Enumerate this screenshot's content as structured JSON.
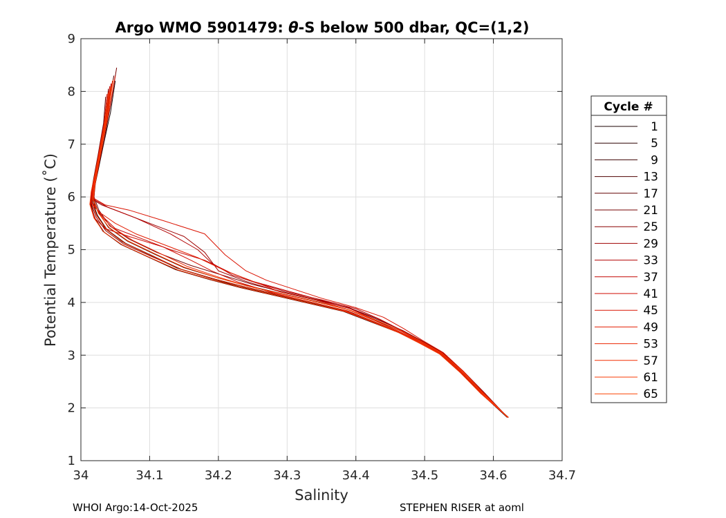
{
  "chart_data": {
    "type": "line",
    "title_prefix": "Argo WMO 5901479: ",
    "title_theta": "θ",
    "title_suffix": "-S below 500 dbar,  QC=(1,2)",
    "xlabel": "Salinity",
    "ylabel": "Potential Temperature (˚C)",
    "xlim": [
      34.0,
      34.7
    ],
    "ylim": [
      1,
      9
    ],
    "xticks": [
      "34",
      "34.1",
      "34.2",
      "34.3",
      "34.4",
      "34.5",
      "34.6",
      "34.7"
    ],
    "yticks": [
      "1",
      "2",
      "3",
      "4",
      "5",
      "6",
      "7",
      "8",
      "9"
    ],
    "grid": true,
    "legend": {
      "title": "Cycle #",
      "placement": "outside-right",
      "entries": [
        "1",
        "5",
        "9",
        "13",
        "17",
        "21",
        "25",
        "29",
        "33",
        "37",
        "41",
        "45",
        "49",
        "53",
        "57",
        "61",
        "65"
      ],
      "colors": [
        "#1a0000",
        "#2a0000",
        "#3c0000",
        "#4f0000",
        "#620000",
        "#760000",
        "#8a0000",
        "#9e0000",
        "#b20000",
        "#c20300",
        "#cf0a00",
        "#da1200",
        "#e31b00",
        "#ec2400",
        "#f22e00",
        "#f73800",
        "#fb4200"
      ]
    },
    "series": [
      {
        "x": [
          34.05,
          34.043,
          34.033,
          34.025,
          34.02,
          34.018,
          34.022,
          34.035,
          34.06,
          34.1,
          34.14,
          34.19,
          34.23,
          34.28,
          34.33,
          34.38,
          34.42,
          34.46,
          34.49,
          34.52,
          34.55,
          34.58,
          34.62
        ],
        "y": [
          8.2,
          7.6,
          7.0,
          6.5,
          6.2,
          5.95,
          5.7,
          5.4,
          5.15,
          4.9,
          4.65,
          4.45,
          4.3,
          4.15,
          4.0,
          3.85,
          3.65,
          3.45,
          3.25,
          3.05,
          2.7,
          2.3,
          1.82
        ]
      },
      {
        "x": [
          34.045,
          34.038,
          34.028,
          34.022,
          34.019,
          34.017,
          34.024,
          34.038,
          34.065,
          34.105,
          34.145,
          34.195,
          34.24,
          34.29,
          34.34,
          34.385,
          34.425,
          34.462,
          34.492,
          34.522,
          34.552,
          34.582,
          34.621
        ],
        "y": [
          8.1,
          7.5,
          6.9,
          6.45,
          6.15,
          5.9,
          5.65,
          5.38,
          5.12,
          4.88,
          4.63,
          4.44,
          4.29,
          4.14,
          3.99,
          3.84,
          3.64,
          3.44,
          3.24,
          3.03,
          2.68,
          2.28,
          1.82
        ]
      },
      {
        "x": [
          34.04,
          34.035,
          34.027,
          34.02,
          34.016,
          34.015,
          34.02,
          34.032,
          34.058,
          34.098,
          34.138,
          34.188,
          34.232,
          34.282,
          34.332,
          34.382,
          34.422,
          34.462,
          34.493,
          34.523,
          34.553,
          34.583,
          34.622
        ],
        "y": [
          8.0,
          7.45,
          6.85,
          6.4,
          6.1,
          5.85,
          5.6,
          5.35,
          5.1,
          4.86,
          4.62,
          4.43,
          4.28,
          4.13,
          3.98,
          3.83,
          3.63,
          3.43,
          3.23,
          3.02,
          2.67,
          2.27,
          1.82
        ]
      },
      {
        "x": [
          34.048,
          34.04,
          34.03,
          34.023,
          34.019,
          34.018,
          34.025,
          34.04,
          34.068,
          34.108,
          34.15,
          34.2,
          34.245,
          34.295,
          34.345,
          34.39,
          34.428,
          34.465,
          34.494,
          34.524,
          34.553,
          34.583,
          34.621
        ],
        "y": [
          8.3,
          7.7,
          7.05,
          6.55,
          6.22,
          5.98,
          5.72,
          5.42,
          5.16,
          4.91,
          4.66,
          4.46,
          4.31,
          4.16,
          4.01,
          3.86,
          3.66,
          3.46,
          3.26,
          3.04,
          2.69,
          2.29,
          1.82
        ]
      },
      {
        "x": [
          34.036,
          34.033,
          34.025,
          34.019,
          34.015,
          34.014,
          34.021,
          34.034,
          34.06,
          34.1,
          34.142,
          34.192,
          34.236,
          34.286,
          34.336,
          34.386,
          34.426,
          34.464,
          34.494,
          34.524,
          34.554,
          34.584,
          34.622
        ],
        "y": [
          7.9,
          7.4,
          6.8,
          6.38,
          6.08,
          5.84,
          5.58,
          5.33,
          5.09,
          4.85,
          4.61,
          4.42,
          4.27,
          4.12,
          3.97,
          3.82,
          3.62,
          3.42,
          3.22,
          3.01,
          2.66,
          2.26,
          1.82
        ]
      },
      {
        "x": [
          34.052,
          34.044,
          34.034,
          34.026,
          34.021,
          34.019,
          34.026,
          34.042,
          34.07,
          34.11,
          34.16,
          34.21,
          34.25,
          34.3,
          34.35,
          34.395,
          34.432,
          34.468,
          34.496,
          34.526,
          34.556,
          34.586,
          34.62
        ],
        "y": [
          8.45,
          7.8,
          7.1,
          6.6,
          6.25,
          6.0,
          5.75,
          5.45,
          5.2,
          4.95,
          4.7,
          4.5,
          4.34,
          4.18,
          4.03,
          3.87,
          3.67,
          3.47,
          3.27,
          3.05,
          2.7,
          2.3,
          1.83
        ]
      },
      {
        "x": [
          34.04,
          34.036,
          34.027,
          34.02,
          34.016,
          34.015,
          34.022,
          34.036,
          34.062,
          34.103,
          34.146,
          34.196,
          34.24,
          34.29,
          34.34,
          34.388,
          34.426,
          34.463,
          34.493,
          34.523,
          34.553,
          34.583,
          34.621
        ],
        "y": [
          8.05,
          7.5,
          6.88,
          6.42,
          6.12,
          5.88,
          5.62,
          5.36,
          5.11,
          4.87,
          4.63,
          4.44,
          4.29,
          4.14,
          3.99,
          3.84,
          3.64,
          3.44,
          3.24,
          3.03,
          2.68,
          2.28,
          1.82
        ]
      },
      {
        "x": [
          34.044,
          34.038,
          34.03,
          34.022,
          34.018,
          34.017,
          34.03,
          34.06,
          34.1,
          34.15,
          34.18,
          34.2,
          34.24,
          34.29,
          34.34,
          34.39,
          34.43,
          34.465,
          34.495,
          34.525,
          34.555,
          34.585,
          34.621
        ],
        "y": [
          8.15,
          7.55,
          6.95,
          6.5,
          6.2,
          5.95,
          5.85,
          5.7,
          5.5,
          5.25,
          4.95,
          4.6,
          4.4,
          4.2,
          4.05,
          3.9,
          3.7,
          3.48,
          3.27,
          3.04,
          2.69,
          2.29,
          1.82
        ]
      },
      {
        "x": [
          34.046,
          34.04,
          34.031,
          34.024,
          34.02,
          34.019,
          34.04,
          34.08,
          34.13,
          34.17,
          34.19,
          34.22,
          34.26,
          34.3,
          34.35,
          34.4,
          34.435,
          34.467,
          34.496,
          34.526,
          34.555,
          34.584,
          34.62
        ],
        "y": [
          8.2,
          7.62,
          7.0,
          6.5,
          6.18,
          5.95,
          5.8,
          5.6,
          5.3,
          5.0,
          4.75,
          4.52,
          4.35,
          4.2,
          4.05,
          3.88,
          3.68,
          3.47,
          3.26,
          3.04,
          2.69,
          2.29,
          1.83
        ]
      },
      {
        "x": [
          34.042,
          34.036,
          34.028,
          34.021,
          34.017,
          34.016,
          34.03,
          34.05,
          34.09,
          34.13,
          34.18,
          34.22,
          34.25,
          34.3,
          34.345,
          34.39,
          34.428,
          34.465,
          34.495,
          34.525,
          34.554,
          34.583,
          34.62
        ],
        "y": [
          8.1,
          7.5,
          6.9,
          6.45,
          6.15,
          5.9,
          5.65,
          5.4,
          5.2,
          5.0,
          4.8,
          4.55,
          4.4,
          4.22,
          4.06,
          3.89,
          3.67,
          3.46,
          3.25,
          3.03,
          2.68,
          2.28,
          1.83
        ]
      },
      {
        "x": [
          34.038,
          34.034,
          34.026,
          34.02,
          34.016,
          34.014,
          34.02,
          34.035,
          34.07,
          34.12,
          34.16,
          34.19,
          34.23,
          34.28,
          34.33,
          34.38,
          34.42,
          34.46,
          34.492,
          34.522,
          34.552,
          34.582,
          34.621
        ],
        "y": [
          7.95,
          7.42,
          6.84,
          6.39,
          6.09,
          5.85,
          5.6,
          5.4,
          5.25,
          5.05,
          4.8,
          4.6,
          4.38,
          4.18,
          4.02,
          3.86,
          3.65,
          3.44,
          3.24,
          3.02,
          2.67,
          2.27,
          1.82
        ]
      },
      {
        "x": [
          34.05,
          34.042,
          34.032,
          34.025,
          34.02,
          34.018,
          34.035,
          34.07,
          34.12,
          34.18,
          34.21,
          34.24,
          34.27,
          34.31,
          34.35,
          34.4,
          34.44,
          34.47,
          34.497,
          34.527,
          34.556,
          34.585,
          34.62
        ],
        "y": [
          8.3,
          7.7,
          7.05,
          6.55,
          6.22,
          5.98,
          5.85,
          5.75,
          5.55,
          5.3,
          4.9,
          4.6,
          4.42,
          4.25,
          4.08,
          3.9,
          3.72,
          3.5,
          3.28,
          3.05,
          2.7,
          2.3,
          1.83
        ]
      },
      {
        "x": [
          34.041,
          34.037,
          34.028,
          34.021,
          34.017,
          34.016,
          34.028,
          34.05,
          34.08,
          34.12,
          34.17,
          34.21,
          34.25,
          34.29,
          34.34,
          34.385,
          34.425,
          34.463,
          34.494,
          34.524,
          34.554,
          34.583,
          34.621
        ],
        "y": [
          8.0,
          7.45,
          6.86,
          6.41,
          6.11,
          5.87,
          5.7,
          5.5,
          5.3,
          5.1,
          4.85,
          4.6,
          4.4,
          4.2,
          4.05,
          3.88,
          3.67,
          3.45,
          3.25,
          3.03,
          2.68,
          2.28,
          1.82
        ]
      },
      {
        "x": [
          34.045,
          34.039,
          34.03,
          34.023,
          34.019,
          34.018,
          34.026,
          34.045,
          34.075,
          34.115,
          34.155,
          34.2,
          34.24,
          34.29,
          34.34,
          34.39,
          34.43,
          34.466,
          34.495,
          34.525,
          34.555,
          34.584,
          34.621
        ],
        "y": [
          8.15,
          7.58,
          6.96,
          6.48,
          6.17,
          5.93,
          5.68,
          5.43,
          5.18,
          4.93,
          4.68,
          4.48,
          4.32,
          4.17,
          4.02,
          3.86,
          3.66,
          3.46,
          3.26,
          3.04,
          2.69,
          2.29,
          1.82
        ]
      },
      {
        "x": [
          34.043,
          34.037,
          34.029,
          34.022,
          34.018,
          34.016,
          34.023,
          34.038,
          34.064,
          34.104,
          34.146,
          34.194,
          34.238,
          34.288,
          34.338,
          34.386,
          34.426,
          34.463,
          34.493,
          34.523,
          34.553,
          34.583,
          34.621
        ],
        "y": [
          8.08,
          7.52,
          6.9,
          6.44,
          6.14,
          5.89,
          5.64,
          5.37,
          5.12,
          4.88,
          4.63,
          4.44,
          4.29,
          4.14,
          3.99,
          3.84,
          3.64,
          3.44,
          3.24,
          3.03,
          2.68,
          2.28,
          1.82
        ]
      },
      {
        "x": [
          34.04,
          34.035,
          34.027,
          34.02,
          34.015,
          34.013,
          34.019,
          34.033,
          34.059,
          34.099,
          34.14,
          34.19,
          34.234,
          34.284,
          34.334,
          34.384,
          34.424,
          34.462,
          34.492,
          34.522,
          34.552,
          34.582,
          34.622
        ],
        "y": [
          7.98,
          7.44,
          6.85,
          6.4,
          6.1,
          5.86,
          5.6,
          5.34,
          5.1,
          4.86,
          4.62,
          4.43,
          4.28,
          4.13,
          3.98,
          3.83,
          3.63,
          3.43,
          3.23,
          3.02,
          2.67,
          2.27,
          1.82
        ]
      },
      {
        "x": [
          34.047,
          34.04,
          34.031,
          34.024,
          34.02,
          34.018,
          34.025,
          34.041,
          34.068,
          34.108,
          34.15,
          34.198,
          34.242,
          34.292,
          34.342,
          34.39,
          34.43,
          34.466,
          34.495,
          34.525,
          34.555,
          34.584,
          34.62
        ],
        "y": [
          8.22,
          7.64,
          7.0,
          6.52,
          6.2,
          5.96,
          5.7,
          5.42,
          5.17,
          4.92,
          4.67,
          4.47,
          4.31,
          4.16,
          4.01,
          3.86,
          3.66,
          3.46,
          3.26,
          3.04,
          2.69,
          2.29,
          1.83
        ]
      }
    ]
  },
  "footer": {
    "left": "WHOI Argo:14-Oct-2025",
    "right": "STEPHEN RISER at aoml"
  }
}
